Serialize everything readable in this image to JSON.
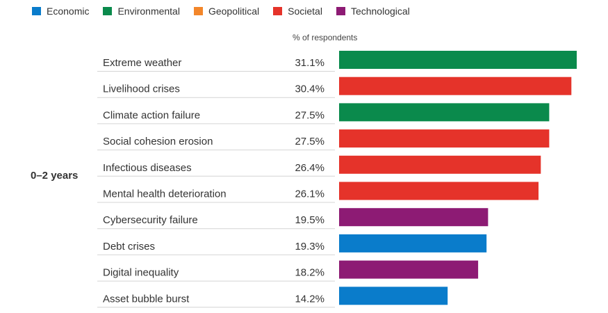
{
  "legend": [
    {
      "label": "Economic",
      "color": "#0a7ccb"
    },
    {
      "label": "Environmental",
      "color": "#0a8a4c"
    },
    {
      "label": "Geopolitical",
      "color": "#f3862a"
    },
    {
      "label": "Societal",
      "color": "#e5332a"
    },
    {
      "label": "Technological",
      "color": "#8d1b74"
    }
  ],
  "chart_data": {
    "type": "bar",
    "orientation": "horizontal",
    "header": "% of respondents",
    "period_label": "0–2 years",
    "xlim": [
      0,
      31.1
    ],
    "categories": [
      "Extreme weather",
      "Livelihood crises",
      "Climate action failure",
      "Social cohesion erosion",
      "Infectious diseases",
      "Mental health deterioration",
      "Cybersecurity failure",
      "Debt crises",
      "Digital inequality",
      "Asset bubble burst"
    ],
    "value_labels": [
      "31.1%",
      "30.4%",
      "27.5%",
      "27.5%",
      "26.4%",
      "26.1%",
      "19.5%",
      "19.3%",
      "18.2%",
      "14.2%"
    ],
    "values": [
      31.1,
      30.4,
      27.5,
      27.5,
      26.4,
      26.1,
      19.5,
      19.3,
      18.2,
      14.2
    ],
    "colors": [
      "#0a8a4c",
      "#e5332a",
      "#0a8a4c",
      "#e5332a",
      "#e5332a",
      "#e5332a",
      "#8d1b74",
      "#0a7ccb",
      "#8d1b74",
      "#0a7ccb"
    ]
  }
}
